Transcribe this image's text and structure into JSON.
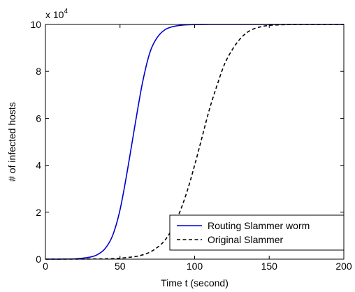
{
  "chart_data": {
    "type": "line",
    "title": "",
    "xlabel": "Time t (second)",
    "ylabel": "# of infected hosts",
    "xlim": [
      0,
      200
    ],
    "ylim": [
      0,
      100000
    ],
    "x_ticks": [
      0,
      50,
      100,
      150,
      200
    ],
    "y_ticks": [
      0,
      20000,
      40000,
      60000,
      80000,
      100000
    ],
    "x_tick_labels": [
      "0",
      "50",
      "100",
      "150",
      "200"
    ],
    "y_tick_labels": [
      "0",
      "2",
      "4",
      "6",
      "8",
      "10"
    ],
    "y_multiplier": "x 10",
    "y_multiplier_exp": "4",
    "grid": false,
    "legend_position": "bottom-right",
    "series": [
      {
        "name": "Routing Slammer worm",
        "color": "#0000cc",
        "style": "solid",
        "x": [
          0,
          10,
          20,
          30,
          35,
          40,
          45,
          50,
          55,
          60,
          65,
          70,
          75,
          80,
          85,
          90,
          95,
          100,
          110,
          120,
          150,
          200
        ],
        "y": [
          10,
          30,
          150,
          900,
          2000,
          4500,
          10000,
          21000,
          38000,
          57000,
          75000,
          88000,
          94500,
          97700,
          99000,
          99600,
          99850,
          99950,
          100000,
          100000,
          100000,
          100000
        ]
      },
      {
        "name": "Original Slammer",
        "color": "#000000",
        "style": "dashed",
        "x": [
          0,
          20,
          40,
          50,
          60,
          65,
          70,
          75,
          80,
          85,
          90,
          95,
          100,
          105,
          110,
          115,
          120,
          125,
          130,
          135,
          140,
          145,
          150,
          160,
          170,
          200
        ],
        "y": [
          0,
          20,
          150,
          400,
          1100,
          1800,
          3000,
          5000,
          8000,
          13000,
          20000,
          29000,
          40000,
          52000,
          64000,
          74000,
          83000,
          89000,
          93500,
          96500,
          98200,
          99100,
          99600,
          99900,
          100000,
          100000
        ]
      }
    ]
  }
}
